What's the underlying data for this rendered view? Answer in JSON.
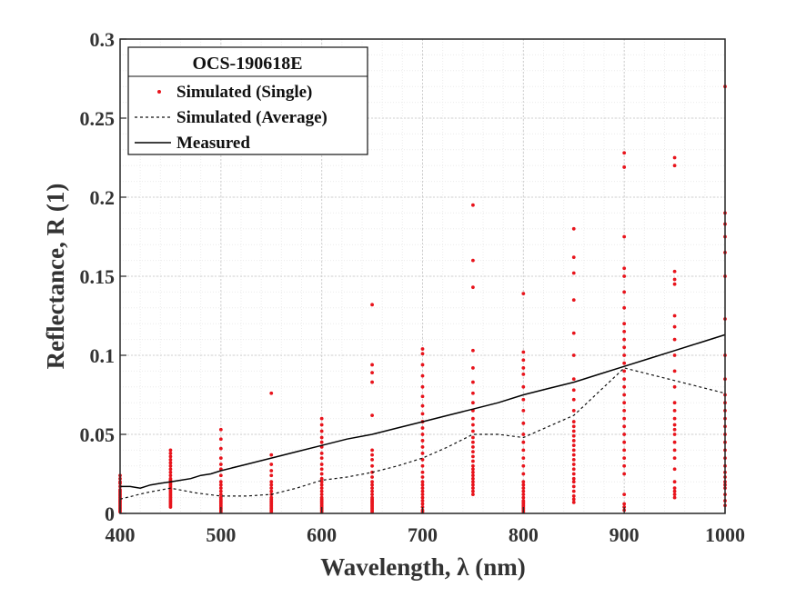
{
  "chart_data": {
    "type": "scatter",
    "xlabel": "Wavelength, λ (nm)",
    "ylabel": "Reflectance, R (1)",
    "xlim": [
      400,
      1000
    ],
    "ylim": [
      0,
      0.3
    ],
    "x_ticks": [
      "400",
      "500",
      "600",
      "700",
      "800",
      "900",
      "1000"
    ],
    "y_ticks": [
      "0",
      "0.05",
      "0.1",
      "0.15",
      "0.2",
      "0.25",
      "0.3"
    ],
    "grid": true,
    "minor_grid": true,
    "legend": {
      "title": "OCS-190618E",
      "placement": "top-left",
      "entries": [
        "Simulated (Single)",
        "Simulated (Average)",
        "Measured"
      ]
    },
    "series": [
      {
        "name": "Simulated (Single)",
        "kind": "points",
        "color": "#e8141c",
        "groups": [
          {
            "x": 400,
            "y": [
              0.001,
              0.002,
              0.003,
              0.004,
              0.005,
              0.006,
              0.007,
              0.008,
              0.009,
              0.01,
              0.011,
              0.012,
              0.013,
              0.014,
              0.015,
              0.017,
              0.019,
              0.02,
              0.022,
              0.024
            ]
          },
          {
            "x": 450,
            "y": [
              0.004,
              0.005,
              0.006,
              0.007,
              0.008,
              0.009,
              0.01,
              0.011,
              0.012,
              0.013,
              0.014,
              0.015,
              0.016,
              0.017,
              0.018,
              0.019,
              0.02,
              0.021,
              0.022,
              0.024,
              0.026,
              0.028,
              0.03,
              0.032,
              0.034,
              0.036,
              0.038,
              0.04
            ]
          },
          {
            "x": 500,
            "y": [
              0.001,
              0.002,
              0.003,
              0.004,
              0.005,
              0.006,
              0.007,
              0.008,
              0.009,
              0.01,
              0.012,
              0.014,
              0.016,
              0.018,
              0.02,
              0.024,
              0.028,
              0.031,
              0.035,
              0.041,
              0.047,
              0.053
            ]
          },
          {
            "x": 550,
            "y": [
              0.001,
              0.002,
              0.003,
              0.004,
              0.005,
              0.006,
              0.007,
              0.008,
              0.009,
              0.01,
              0.012,
              0.014,
              0.016,
              0.018,
              0.02,
              0.024,
              0.027,
              0.031,
              0.037,
              0.076
            ]
          },
          {
            "x": 600,
            "y": [
              0.001,
              0.002,
              0.003,
              0.004,
              0.005,
              0.006,
              0.007,
              0.008,
              0.009,
              0.01,
              0.012,
              0.014,
              0.016,
              0.018,
              0.02,
              0.022,
              0.025,
              0.028,
              0.031,
              0.035,
              0.038,
              0.042,
              0.045,
              0.048,
              0.052,
              0.056,
              0.06
            ]
          },
          {
            "x": 650,
            "y": [
              0.001,
              0.002,
              0.003,
              0.004,
              0.005,
              0.006,
              0.007,
              0.008,
              0.009,
              0.01,
              0.012,
              0.014,
              0.016,
              0.018,
              0.02,
              0.023,
              0.026,
              0.03,
              0.034,
              0.037,
              0.04,
              0.062,
              0.083,
              0.089,
              0.094,
              0.132
            ]
          },
          {
            "x": 700,
            "y": [
              0.001,
              0.002,
              0.004,
              0.006,
              0.008,
              0.01,
              0.012,
              0.014,
              0.016,
              0.018,
              0.02,
              0.023,
              0.026,
              0.03,
              0.034,
              0.038,
              0.042,
              0.046,
              0.05,
              0.054,
              0.058,
              0.063,
              0.068,
              0.074,
              0.08,
              0.087,
              0.094,
              0.101,
              0.104
            ]
          },
          {
            "x": 750,
            "y": [
              0.012,
              0.014,
              0.016,
              0.018,
              0.02,
              0.022,
              0.024,
              0.026,
              0.028,
              0.03,
              0.033,
              0.036,
              0.039,
              0.042,
              0.045,
              0.048,
              0.052,
              0.056,
              0.06,
              0.065,
              0.07,
              0.076,
              0.083,
              0.092,
              0.103,
              0.143,
              0.16,
              0.195
            ]
          },
          {
            "x": 800,
            "y": [
              0.001,
              0.002,
              0.003,
              0.004,
              0.005,
              0.006,
              0.007,
              0.008,
              0.01,
              0.012,
              0.014,
              0.016,
              0.018,
              0.02,
              0.025,
              0.03,
              0.035,
              0.04,
              0.045,
              0.05,
              0.057,
              0.065,
              0.072,
              0.08,
              0.088,
              0.092,
              0.097,
              0.102,
              0.139
            ]
          },
          {
            "x": 850,
            "y": [
              0.007,
              0.009,
              0.011,
              0.014,
              0.017,
              0.02,
              0.022,
              0.025,
              0.028,
              0.031,
              0.034,
              0.037,
              0.04,
              0.043,
              0.046,
              0.049,
              0.052,
              0.055,
              0.058,
              0.065,
              0.072,
              0.078,
              0.085,
              0.1,
              0.114,
              0.135,
              0.152,
              0.162,
              0.18
            ]
          },
          {
            "x": 900,
            "y": [
              0.002,
              0.004,
              0.006,
              0.012,
              0.025,
              0.03,
              0.035,
              0.04,
              0.045,
              0.05,
              0.055,
              0.06,
              0.065,
              0.07,
              0.075,
              0.08,
              0.085,
              0.09,
              0.095,
              0.1,
              0.105,
              0.11,
              0.115,
              0.12,
              0.13,
              0.14,
              0.15,
              0.155,
              0.175,
              0.219,
              0.228
            ]
          },
          {
            "x": 950,
            "y": [
              0.01,
              0.012,
              0.014,
              0.016,
              0.02,
              0.028,
              0.035,
              0.04,
              0.045,
              0.05,
              0.053,
              0.056,
              0.06,
              0.065,
              0.07,
              0.08,
              0.09,
              0.1,
              0.11,
              0.118,
              0.125,
              0.145,
              0.148,
              0.153,
              0.22,
              0.225
            ]
          },
          {
            "x": 1000,
            "y": [
              0.005,
              0.008,
              0.012,
              0.016,
              0.018,
              0.02,
              0.023,
              0.026,
              0.03,
              0.035,
              0.04,
              0.045,
              0.05,
              0.055,
              0.06,
              0.065,
              0.07,
              0.075,
              0.085,
              0.1,
              0.123,
              0.15,
              0.165,
              0.175,
              0.183,
              0.19,
              0.27
            ]
          }
        ]
      },
      {
        "name": "Simulated (Average)",
        "kind": "line",
        "style": "dashed",
        "color": "#111111",
        "x": [
          400,
          425,
          450,
          475,
          500,
          525,
          550,
          575,
          600,
          625,
          650,
          675,
          700,
          725,
          750,
          775,
          800,
          825,
          850,
          875,
          900,
          925,
          950,
          975,
          1000
        ],
        "y": [
          0.009,
          0.013,
          0.016,
          0.013,
          0.011,
          0.011,
          0.012,
          0.016,
          0.021,
          0.023,
          0.026,
          0.03,
          0.035,
          0.042,
          0.05,
          0.05,
          0.048,
          0.055,
          0.062,
          0.077,
          0.092,
          0.088,
          0.084,
          0.08,
          0.076
        ]
      },
      {
        "name": "Measured",
        "kind": "line",
        "style": "solid",
        "color": "#000000",
        "x": [
          400,
          410,
          420,
          430,
          440,
          450,
          460,
          470,
          480,
          490,
          500,
          525,
          550,
          575,
          600,
          625,
          650,
          675,
          700,
          725,
          750,
          775,
          800,
          825,
          850,
          875,
          900,
          925,
          950,
          975,
          1000
        ],
        "y": [
          0.017,
          0.017,
          0.016,
          0.018,
          0.019,
          0.02,
          0.021,
          0.022,
          0.024,
          0.025,
          0.027,
          0.031,
          0.035,
          0.039,
          0.043,
          0.047,
          0.05,
          0.054,
          0.058,
          0.062,
          0.066,
          0.07,
          0.075,
          0.079,
          0.083,
          0.088,
          0.093,
          0.098,
          0.103,
          0.108,
          0.113
        ]
      }
    ]
  }
}
